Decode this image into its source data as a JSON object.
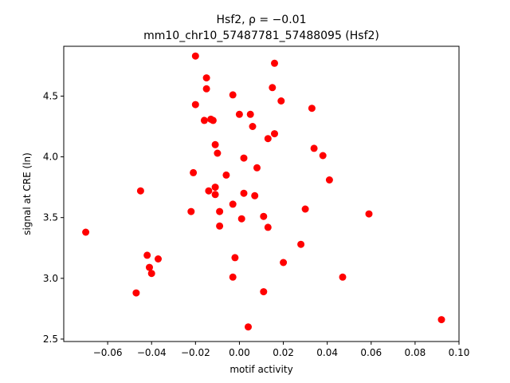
{
  "chart_data": {
    "type": "scatter",
    "title_line1": "Hsf2, ρ = −0.01",
    "title_line2": "mm10_chr10_57487781_57488095 (Hsf2)",
    "xlabel": "motif activity",
    "ylabel": "signal at CRE (ln)",
    "xlim": [
      -0.08,
      0.1
    ],
    "ylim": [
      2.48,
      4.91
    ],
    "x_ticks": [
      -0.06,
      -0.04,
      -0.02,
      0.0,
      0.02,
      0.04,
      0.06,
      0.08,
      0.1
    ],
    "x_tick_labels": [
      "−0.06",
      "−0.04",
      "−0.02",
      "0.00",
      "0.02",
      "0.04",
      "0.06",
      "0.08",
      "0.10"
    ],
    "y_ticks": [
      2.5,
      3.0,
      3.5,
      4.0,
      4.5
    ],
    "y_tick_labels": [
      "2.5",
      "3.0",
      "3.5",
      "4.0",
      "4.5"
    ],
    "grid": false,
    "marker_color": "#ff0000",
    "points": [
      [
        -0.07,
        3.38
      ],
      [
        -0.047,
        2.88
      ],
      [
        -0.045,
        3.72
      ],
      [
        -0.042,
        3.19
      ],
      [
        -0.041,
        3.09
      ],
      [
        -0.04,
        3.04
      ],
      [
        -0.037,
        3.16
      ],
      [
        -0.022,
        3.55
      ],
      [
        -0.021,
        3.87
      ],
      [
        -0.02,
        4.43
      ],
      [
        -0.02,
        4.83
      ],
      [
        -0.016,
        4.3
      ],
      [
        -0.015,
        4.65
      ],
      [
        -0.015,
        4.56
      ],
      [
        -0.014,
        3.72
      ],
      [
        -0.013,
        4.31
      ],
      [
        -0.012,
        4.3
      ],
      [
        -0.011,
        4.1
      ],
      [
        -0.011,
        3.69
      ],
      [
        -0.011,
        3.75
      ],
      [
        -0.01,
        4.03
      ],
      [
        -0.009,
        3.55
      ],
      [
        -0.009,
        3.43
      ],
      [
        -0.006,
        3.85
      ],
      [
        -0.003,
        4.51
      ],
      [
        -0.003,
        3.61
      ],
      [
        -0.003,
        3.01
      ],
      [
        -0.002,
        3.17
      ],
      [
        0.0,
        4.35
      ],
      [
        0.001,
        3.49
      ],
      [
        0.002,
        3.7
      ],
      [
        0.002,
        3.99
      ],
      [
        0.004,
        2.6
      ],
      [
        0.005,
        4.35
      ],
      [
        0.006,
        4.25
      ],
      [
        0.007,
        3.68
      ],
      [
        0.008,
        3.91
      ],
      [
        0.011,
        2.89
      ],
      [
        0.011,
        3.51
      ],
      [
        0.013,
        3.42
      ],
      [
        0.013,
        4.15
      ],
      [
        0.015,
        4.57
      ],
      [
        0.016,
        4.19
      ],
      [
        0.016,
        4.77
      ],
      [
        0.019,
        4.46
      ],
      [
        0.02,
        3.13
      ],
      [
        0.028,
        3.28
      ],
      [
        0.03,
        3.57
      ],
      [
        0.033,
        4.4
      ],
      [
        0.034,
        4.07
      ],
      [
        0.038,
        4.01
      ],
      [
        0.041,
        3.81
      ],
      [
        0.047,
        3.01
      ],
      [
        0.059,
        3.53
      ],
      [
        0.092,
        2.66
      ]
    ]
  }
}
